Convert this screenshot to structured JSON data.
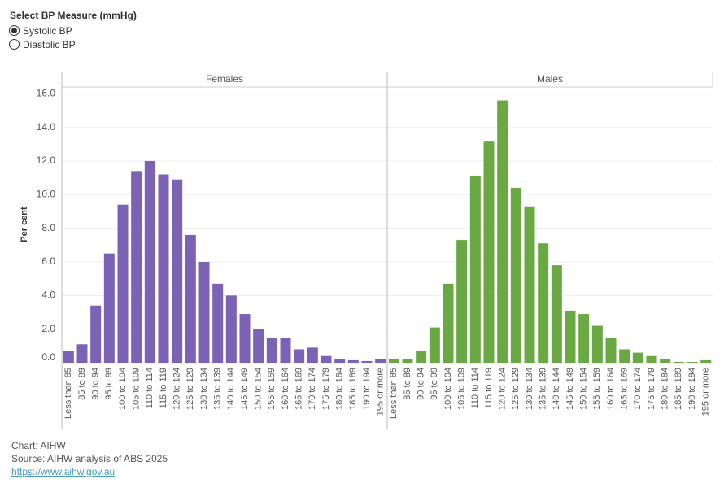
{
  "controls": {
    "title": "Select BP Measure (mmHg)",
    "options": [
      "Systolic BP",
      "Diastolic BP"
    ],
    "selected": 0
  },
  "chart_data": {
    "type": "bar",
    "y_label": "Per cent",
    "categories": [
      "Less than 85",
      "85 to 89",
      "90 to 94",
      "95 to 99",
      "100 to 104",
      "105 to 109",
      "110 to 114",
      "115 to 119",
      "120 to 124",
      "125 to 129",
      "130 to 134",
      "135 to 139",
      "140 to 144",
      "145 to 149",
      "150 to 154",
      "155 to 159",
      "160 to 164",
      "165 to 169",
      "170 to 174",
      "175 to 179",
      "180 to 184",
      "185 to 189",
      "190 to 194",
      "195 or more"
    ],
    "series": [
      {
        "name": "Females",
        "color": "#7b62b5",
        "values": [
          0.7,
          1.1,
          3.4,
          6.5,
          9.4,
          11.4,
          12.0,
          11.2,
          10.9,
          7.6,
          6.0,
          4.7,
          4.0,
          2.9,
          2.0,
          1.5,
          1.5,
          0.8,
          0.9,
          0.4,
          0.2,
          0.15,
          0.1,
          0.2
        ]
      },
      {
        "name": "Males",
        "color": "#6aa843",
        "values": [
          0.2,
          0.2,
          0.7,
          2.1,
          4.7,
          7.3,
          11.1,
          13.2,
          15.6,
          10.4,
          9.3,
          7.1,
          5.8,
          3.1,
          2.9,
          2.2,
          1.5,
          0.8,
          0.6,
          0.4,
          0.2,
          0.05,
          0.05,
          0.15
        ]
      }
    ],
    "ylim": [
      0,
      16.4
    ],
    "yticks": [
      {
        "value": 0,
        "label": "0.0"
      },
      {
        "value": 2,
        "label": "2.0"
      },
      {
        "value": 4,
        "label": "4.0"
      },
      {
        "value": 6,
        "label": "6.0"
      },
      {
        "value": 8,
        "label": "8.0"
      },
      {
        "value": 10,
        "label": "10.0"
      },
      {
        "value": 12,
        "label": "12.0"
      },
      {
        "value": 14,
        "label": "14.0"
      },
      {
        "value": 16,
        "label": "16.0"
      }
    ],
    "grid": true
  },
  "footer": [
    "Chart: AIHW",
    "Source: AIHW analysis of ABS 2025",
    "https://www.aihw.gov.au"
  ]
}
